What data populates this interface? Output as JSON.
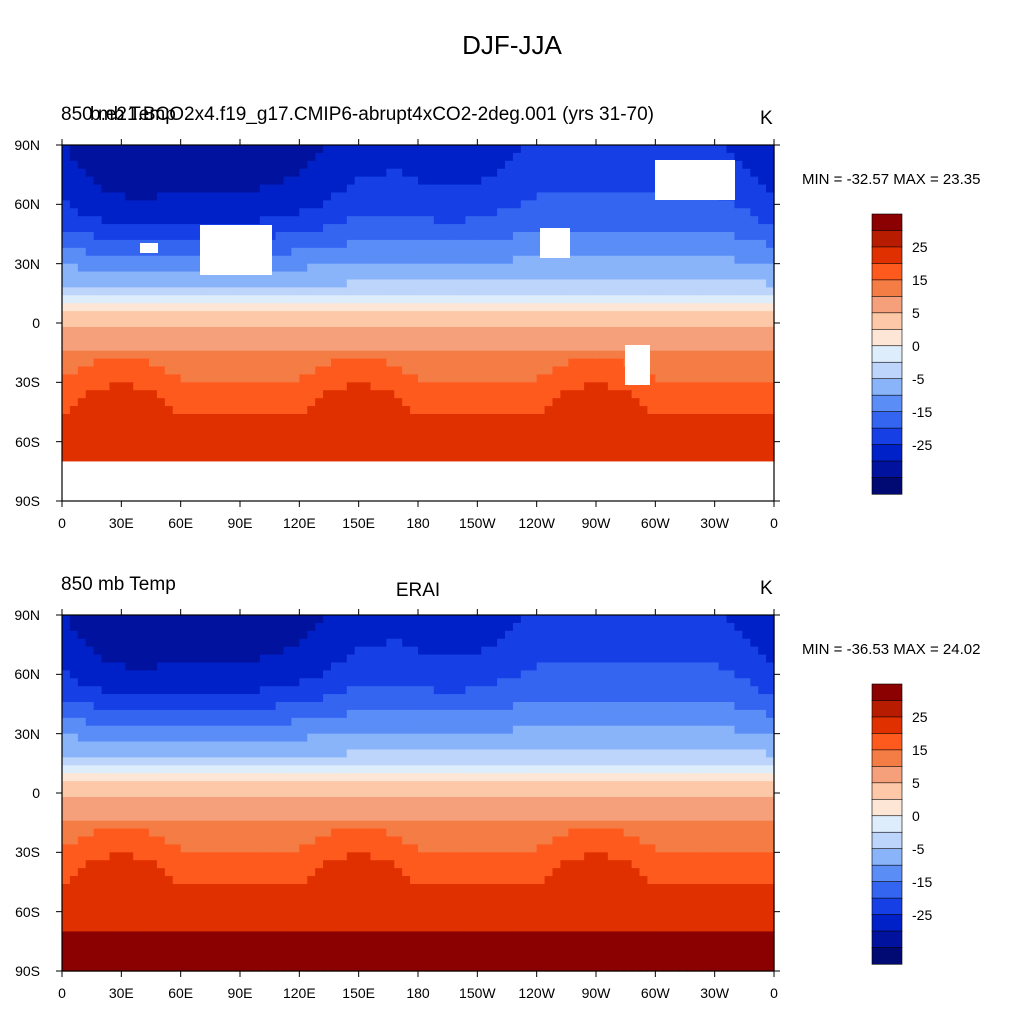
{
  "title": "DJF-JJA",
  "panels": [
    {
      "left_label": "850 mb Temp",
      "case_label": "b.e21.BCO2x4.f19_g17.CMIP6-abrupt4xCO2-2deg.001 (yrs 31-70)",
      "center_label": "",
      "units": "K",
      "min_max": "MIN = -32.57 MAX =  23.35",
      "has_mask": true
    },
    {
      "left_label": "850 mb Temp",
      "case_label": "",
      "center_label": "ERAI",
      "units": "K",
      "min_max": "MIN = -36.53 MAX =  24.02",
      "has_mask": false
    }
  ],
  "lat_ticks": [
    "90N",
    "60N",
    "30N",
    "0",
    "30S",
    "60S",
    "90S"
  ],
  "lon_ticks": [
    "0",
    "30E",
    "60E",
    "90E",
    "120E",
    "150E",
    "180",
    "150W",
    "120W",
    "90W",
    "60W",
    "30W",
    "0"
  ],
  "colorbar": {
    "labels": [
      "25",
      "15",
      "5",
      "0",
      "-5",
      "-15",
      "-25"
    ],
    "colors": [
      "#8b0000",
      "#b71c00",
      "#e03000",
      "#ff5a1e",
      "#f47c45",
      "#f5a07a",
      "#fcc8a8",
      "#fde6d6",
      "#deedfc",
      "#bdd4fb",
      "#8ab4fa",
      "#5b8df7",
      "#3465f0",
      "#1640e6",
      "#0020c8",
      "#00129e",
      "#000a72"
    ]
  },
  "chart_data": {
    "type": "heatmap",
    "title": "DJF-JJA",
    "variable": "850 mb Temp",
    "units": "K",
    "x_axis": "longitude",
    "y_axis": "latitude",
    "xlim": [
      0,
      360
    ],
    "ylim": [
      -90,
      90
    ],
    "contour_levels": [
      -35,
      -30,
      -25,
      -20,
      -15,
      -10,
      -5,
      -2,
      0,
      2,
      5,
      10,
      15,
      20,
      25,
      30
    ],
    "panels": [
      {
        "name": "b.e21.BCO2x4.f19_g17.CMIP6-abrupt4xCO2-2deg.001 (yrs 31-70)",
        "min": -32.57,
        "max": 23.35
      },
      {
        "name": "ERAI",
        "min": -36.53,
        "max": 24.02
      }
    ]
  }
}
